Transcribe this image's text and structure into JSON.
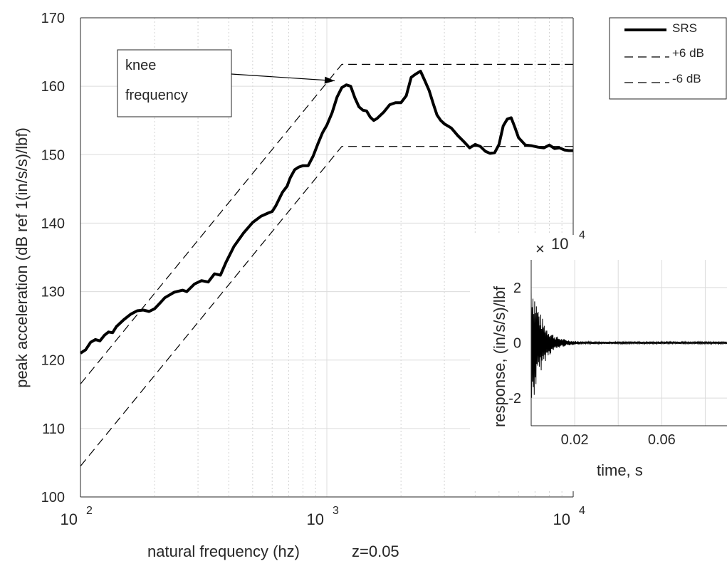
{
  "chart_data": [
    {
      "type": "line",
      "ylabel": "peak acceleration (dB ref 1(in/s/s)/lbf)",
      "xlabel": "natural frequency (hz)",
      "annotation_z": "z=0.05",
      "x_scale": "log",
      "xlim": [
        100,
        10000
      ],
      "ylim": [
        100,
        170
      ],
      "grid": true,
      "legend_position": "top-right",
      "y_ticks": [
        "100",
        "110",
        "120",
        "130",
        "140",
        "150",
        "160",
        "170"
      ],
      "x_ticks": [
        {
          "value": 100,
          "base": "10",
          "exp": "2"
        },
        {
          "value": 1000,
          "base": "10",
          "exp": "3"
        },
        {
          "value": 10000,
          "base": "10",
          "exp": "4"
        }
      ],
      "knee_label_line1": "knee",
      "knee_label_line2": "frequency",
      "knee_point": {
        "x": 1150,
        "y": 161
      },
      "series": [
        {
          "name": "SRS",
          "style": "solid-thick",
          "color": "#000000",
          "points": [
            [
              100,
              121
            ],
            [
              105,
              121.5
            ],
            [
              110,
              122.6
            ],
            [
              115,
              123
            ],
            [
              120,
              122.8
            ],
            [
              125,
              123.6
            ],
            [
              130,
              124.1
            ],
            [
              135,
              124
            ],
            [
              140,
              124.9
            ],
            [
              150,
              125.9
            ],
            [
              160,
              126.7
            ],
            [
              170,
              127.2
            ],
            [
              180,
              127.3
            ],
            [
              190,
              127.1
            ],
            [
              200,
              127.5
            ],
            [
              210,
              128.3
            ],
            [
              220,
              129.1
            ],
            [
              240,
              129.9
            ],
            [
              260,
              130.2
            ],
            [
              270,
              130
            ],
            [
              290,
              131.1
            ],
            [
              310,
              131.6
            ],
            [
              330,
              131.4
            ],
            [
              350,
              132.6
            ],
            [
              370,
              132.4
            ],
            [
              390,
              134.3
            ],
            [
              420,
              136.6
            ],
            [
              460,
              138.6
            ],
            [
              500,
              140.1
            ],
            [
              540,
              141
            ],
            [
              580,
              141.5
            ],
            [
              600,
              141.7
            ],
            [
              620,
              142.5
            ],
            [
              640,
              143.5
            ],
            [
              660,
              144.5
            ],
            [
              690,
              145.4
            ],
            [
              710,
              146.6
            ],
            [
              740,
              147.8
            ],
            [
              770,
              148.2
            ],
            [
              800,
              148.4
            ],
            [
              840,
              148.4
            ],
            [
              880,
              149.8
            ],
            [
              920,
              151.6
            ],
            [
              960,
              153.2
            ],
            [
              1000,
              154.3
            ],
            [
              1050,
              156.1
            ],
            [
              1100,
              158.4
            ],
            [
              1150,
              159.8
            ],
            [
              1200,
              160.2
            ],
            [
              1250,
              160
            ],
            [
              1300,
              158.3
            ],
            [
              1350,
              157
            ],
            [
              1400,
              156.5
            ],
            [
              1450,
              156.4
            ],
            [
              1500,
              155.5
            ],
            [
              1550,
              155
            ],
            [
              1600,
              155.3
            ],
            [
              1700,
              156.2
            ],
            [
              1800,
              157.3
            ],
            [
              1900,
              157.6
            ],
            [
              2000,
              157.6
            ],
            [
              2100,
              158.6
            ],
            [
              2200,
              161.3
            ],
            [
              2300,
              161.8
            ],
            [
              2400,
              162.2
            ],
            [
              2500,
              160.8
            ],
            [
              2600,
              159.4
            ],
            [
              2700,
              157.5
            ],
            [
              2800,
              155.8
            ],
            [
              2900,
              155
            ],
            [
              3000,
              154.5
            ],
            [
              3200,
              153.9
            ],
            [
              3400,
              152.8
            ],
            [
              3600,
              151.9
            ],
            [
              3800,
              151
            ],
            [
              4000,
              151.5
            ],
            [
              4200,
              151.2
            ],
            [
              4400,
              150.5
            ],
            [
              4600,
              150.2
            ],
            [
              4800,
              150.3
            ],
            [
              5000,
              151.5
            ],
            [
              5200,
              154.2
            ],
            [
              5400,
              155.2
            ],
            [
              5600,
              155.4
            ],
            [
              5800,
              154
            ],
            [
              6000,
              152.5
            ],
            [
              6400,
              151.4
            ],
            [
              6800,
              151.3
            ],
            [
              7200,
              151.1
            ],
            [
              7600,
              151
            ],
            [
              8000,
              151.4
            ],
            [
              8400,
              150.9
            ],
            [
              8800,
              151
            ],
            [
              9200,
              150.7
            ],
            [
              9600,
              150.6
            ],
            [
              10000,
              150.6
            ]
          ]
        },
        {
          "name": "+6 dB",
          "style": "dashed",
          "color": "#000000",
          "points": [
            [
              100,
              116.5
            ],
            [
              1150,
              163.2
            ],
            [
              10000,
              163.2
            ]
          ]
        },
        {
          "name": "-6 dB",
          "style": "dashed",
          "color": "#000000",
          "points": [
            [
              100,
              104.5
            ],
            [
              1150,
              151.2
            ],
            [
              10000,
              151.2
            ]
          ]
        }
      ]
    },
    {
      "type": "line",
      "ylabel": "response, (in/s/s)/lbf",
      "xlabel": "time, s",
      "y_multiplier_base": "10",
      "y_multiplier_exp": "4",
      "xlim": [
        0,
        0.09
      ],
      "ylim": [
        -3,
        3
      ],
      "grid": true,
      "y_ticks": [
        {
          "value": 2,
          "label": "2"
        },
        {
          "value": 0,
          "label": "0"
        },
        {
          "value": -2,
          "label": "-2"
        }
      ],
      "x_ticks": [
        {
          "value": 0.02,
          "label": "0.02"
        },
        {
          "value": 0.06,
          "label": "0.06"
        }
      ],
      "signal": {
        "description": "decaying oscillatory impulse response",
        "initial_amplitude": 2.7,
        "decay_time_constant": 0.0045,
        "sample_rate": 5000
      }
    }
  ]
}
